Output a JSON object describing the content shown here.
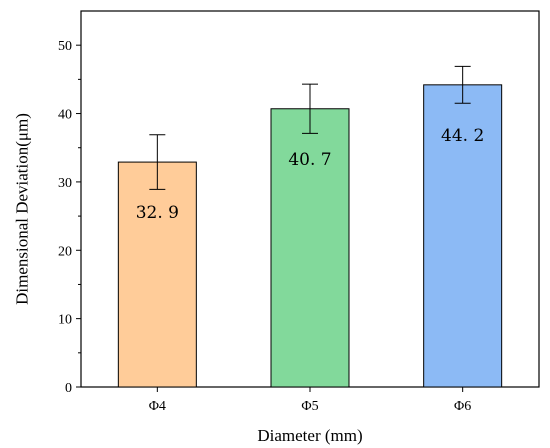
{
  "chart_data": {
    "type": "bar",
    "title": "",
    "xlabel": "Diameter (mm)",
    "ylabel": "Dimensional Deviation(μm)",
    "categories": [
      "Φ4",
      "Φ5",
      "Φ6"
    ],
    "values": [
      32.9,
      40.7,
      44.2
    ],
    "value_labels": [
      "32. 9",
      "40. 7",
      "44. 2"
    ],
    "error": [
      4.0,
      3.6,
      2.7
    ],
    "colors": [
      "#FFCC99",
      "#82D99B",
      "#8CBAF5"
    ],
    "ylim": [
      0,
      55
    ],
    "yticks": [
      0,
      10,
      20,
      30,
      40,
      50
    ],
    "grid": false,
    "legend": "none"
  }
}
